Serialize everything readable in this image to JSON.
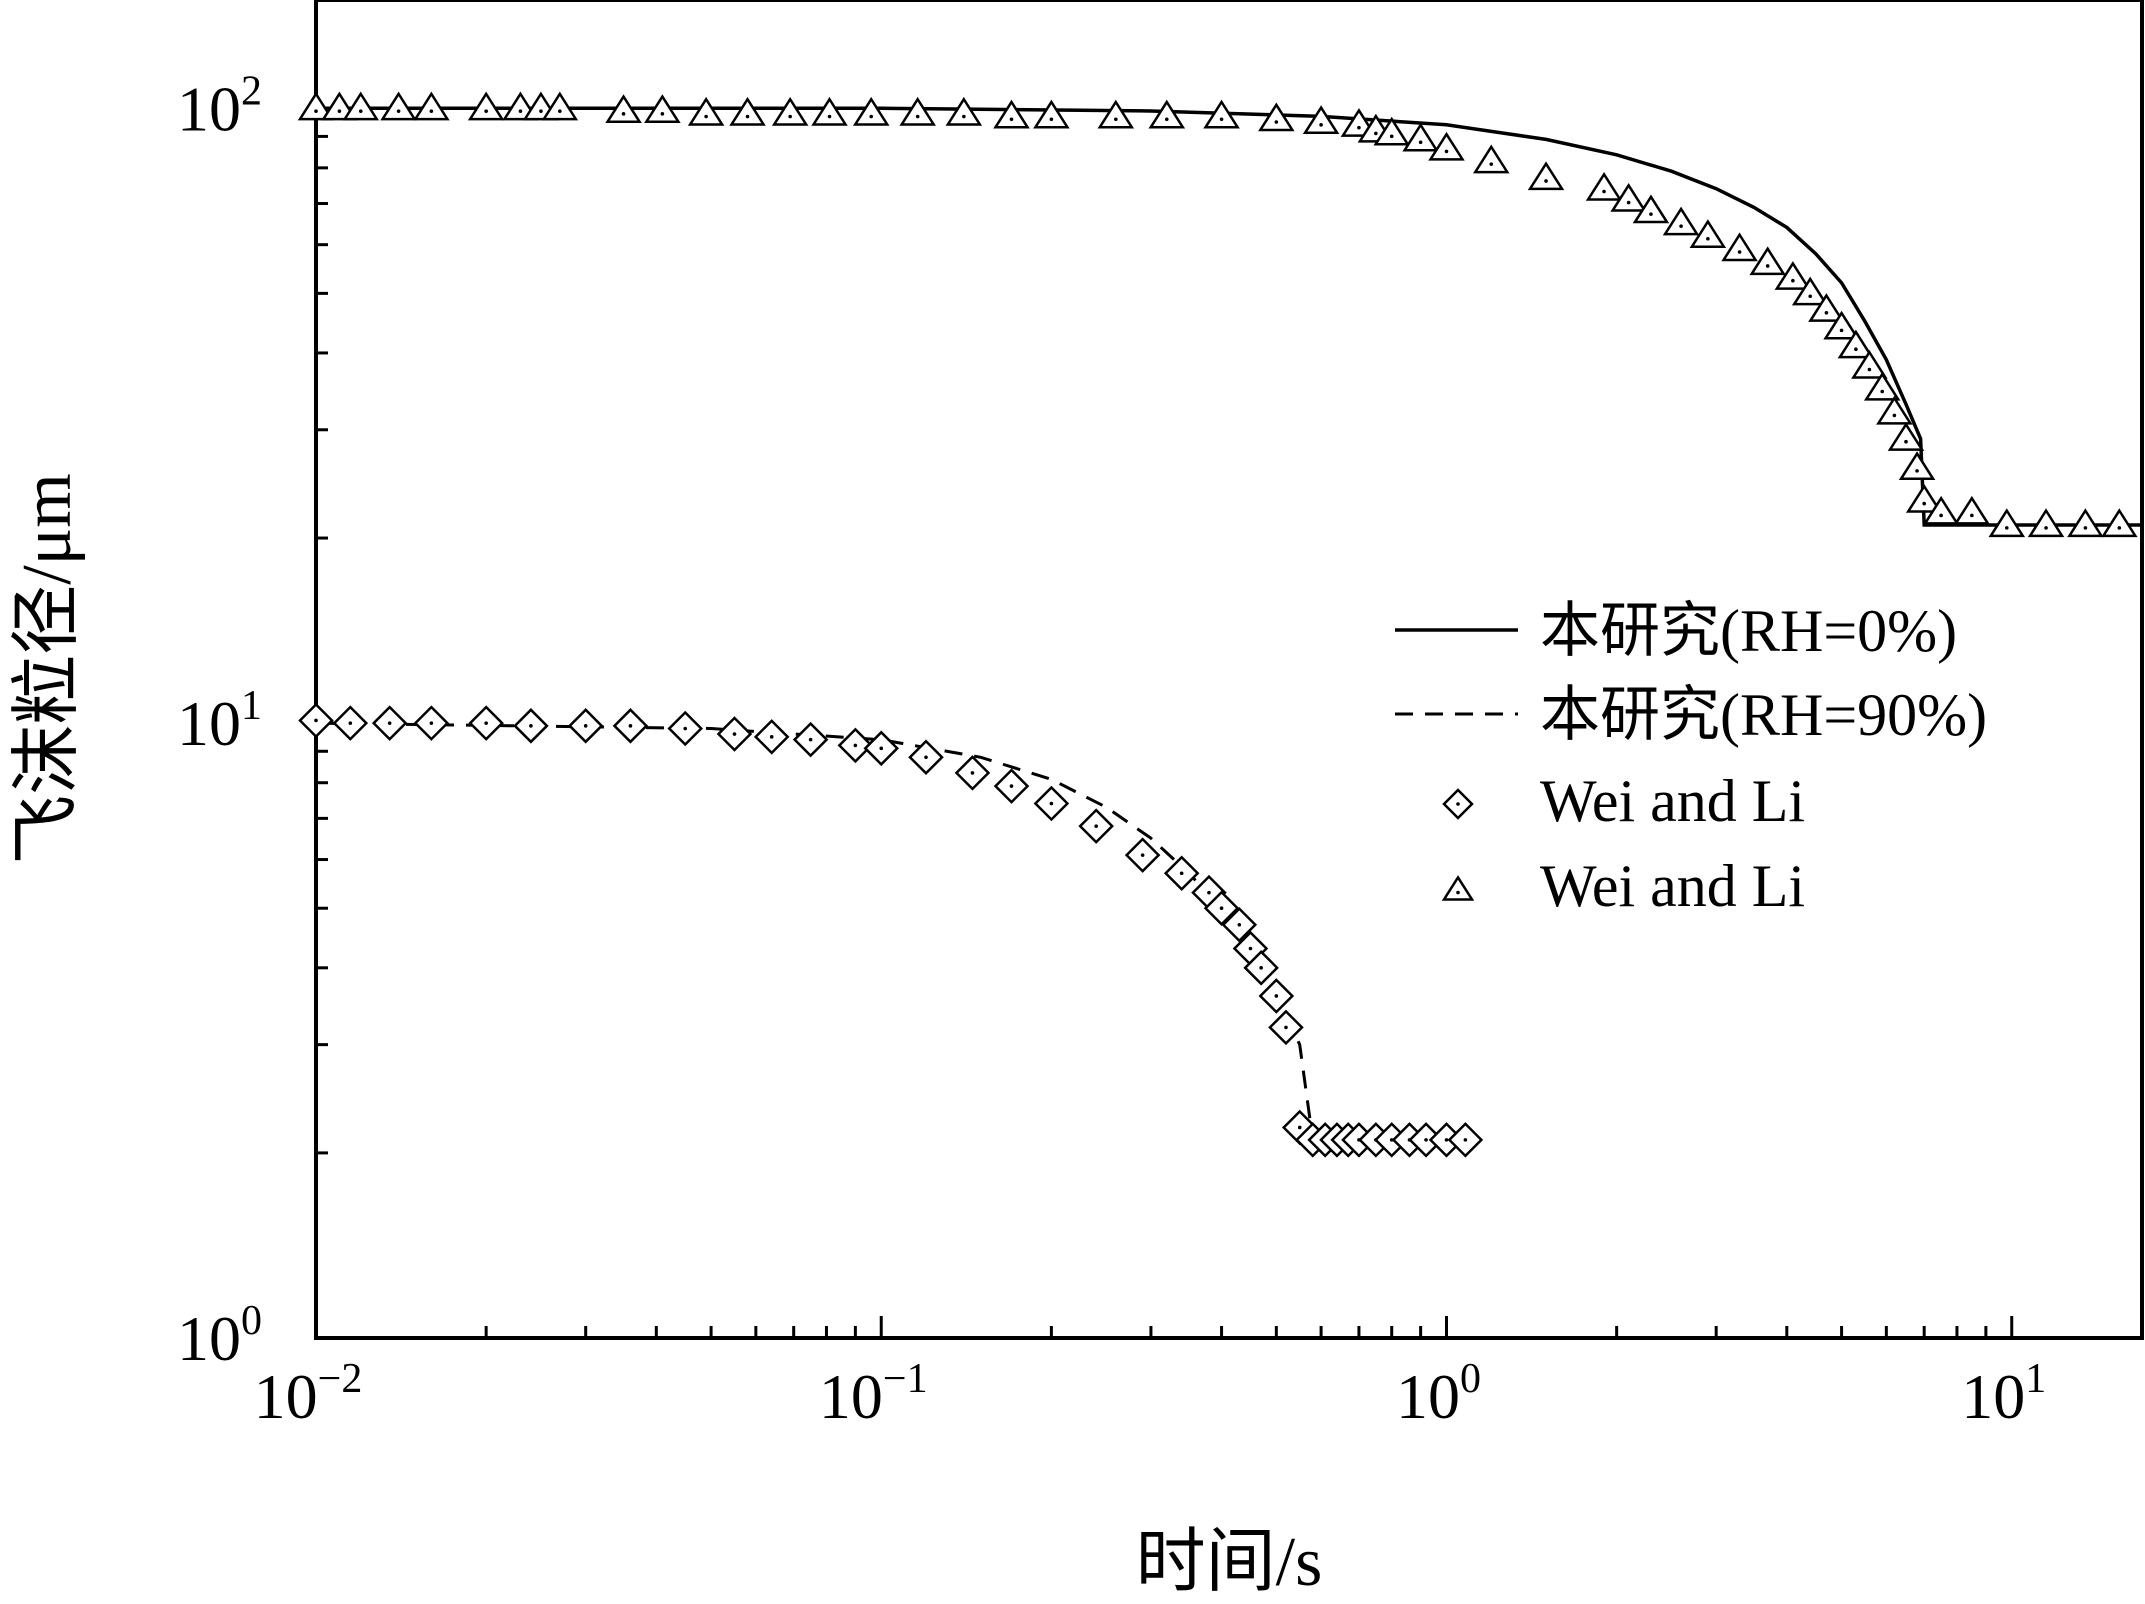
{
  "chart_data": {
    "type": "scatter",
    "xscale": "log",
    "yscale": "log",
    "xlim": [
      0.01,
      17
    ],
    "ylim": [
      1,
      150
    ],
    "xlabel": "时间/s",
    "ylabel": "飞沫粒径/μm",
    "grid": false,
    "legend_position": "right",
    "x_ticks": [
      {
        "value": 0.01,
        "base": "10",
        "exp": "−2"
      },
      {
        "value": 0.1,
        "base": "10",
        "exp": "−1"
      },
      {
        "value": 1,
        "base": "10",
        "exp": "0"
      },
      {
        "value": 10,
        "base": "10",
        "exp": "1"
      }
    ],
    "y_ticks": [
      {
        "value": 1,
        "base": "10",
        "exp": "0"
      },
      {
        "value": 10,
        "base": "10",
        "exp": "1"
      },
      {
        "value": 100,
        "base": "10",
        "exp": "2"
      }
    ],
    "series": [
      {
        "name": "本研究(RH=0%)",
        "style": "solid-line",
        "x": [
          0.01,
          0.1,
          0.3,
          0.6,
          1.0,
          1.5,
          2.0,
          2.5,
          3.0,
          3.5,
          4.0,
          4.5,
          5.0,
          5.5,
          6.0,
          6.5,
          6.9,
          7.0,
          10,
          17
        ],
        "y": [
          100,
          100,
          99,
          97,
          94,
          89,
          84,
          79,
          74,
          69,
          64,
          58,
          52,
          45,
          39,
          33,
          29,
          21,
          21,
          21
        ]
      },
      {
        "name": "本研究(RH=90%)",
        "style": "dashed-line",
        "x": [
          0.01,
          0.05,
          0.1,
          0.15,
          0.2,
          0.25,
          0.3,
          0.35,
          0.4,
          0.45,
          0.5,
          0.55,
          0.58,
          0.6,
          0.8,
          1.1
        ],
        "y": [
          10,
          9.8,
          9.4,
          8.8,
          8.1,
          7.3,
          6.5,
          5.7,
          5.0,
          4.3,
          3.6,
          3.0,
          2.1,
          2.1,
          2.1,
          2.1
        ]
      },
      {
        "name": "Wei and Li",
        "marker": "diamond",
        "x": [
          0.01,
          0.0115,
          0.0135,
          0.016,
          0.02,
          0.024,
          0.03,
          0.036,
          0.045,
          0.055,
          0.064,
          0.075,
          0.09,
          0.1,
          0.12,
          0.145,
          0.17,
          0.2,
          0.24,
          0.29,
          0.34,
          0.38,
          0.4,
          0.43,
          0.45,
          0.47,
          0.5,
          0.52,
          0.55,
          0.58,
          0.61,
          0.64,
          0.67,
          0.7,
          0.75,
          0.8,
          0.86,
          0.92,
          1.0,
          1.08
        ],
        "y": [
          10.1,
          10.0,
          10.0,
          10.0,
          10.0,
          9.9,
          9.9,
          9.9,
          9.8,
          9.6,
          9.5,
          9.4,
          9.2,
          9.1,
          8.8,
          8.3,
          7.9,
          7.4,
          6.8,
          6.1,
          5.7,
          5.3,
          5.0,
          4.7,
          4.3,
          4.0,
          3.6,
          3.2,
          2.2,
          2.1,
          2.1,
          2.1,
          2.1,
          2.1,
          2.1,
          2.1,
          2.1,
          2.1,
          2.1,
          2.1
        ]
      },
      {
        "name": "Wei and Li",
        "marker": "triangle",
        "x": [
          0.01,
          0.011,
          0.012,
          0.014,
          0.016,
          0.02,
          0.023,
          0.025,
          0.027,
          0.035,
          0.041,
          0.049,
          0.058,
          0.069,
          0.081,
          0.096,
          0.116,
          0.14,
          0.17,
          0.2,
          0.26,
          0.32,
          0.4,
          0.5,
          0.6,
          0.7,
          0.75,
          0.8,
          0.9,
          1.0,
          1.2,
          1.5,
          1.9,
          2.1,
          2.3,
          2.6,
          2.9,
          3.3,
          3.7,
          4.1,
          4.4,
          4.7,
          5.0,
          5.3,
          5.6,
          5.9,
          6.2,
          6.5,
          6.8,
          7.0,
          7.5,
          8.5,
          9.8,
          11.5,
          13.5,
          15.5
        ],
        "y": [
          100,
          100,
          100,
          100,
          100,
          100,
          100,
          100,
          100,
          99,
          99,
          98,
          98,
          98,
          98,
          98,
          98,
          98,
          97,
          97,
          97,
          97,
          97,
          96,
          95,
          94,
          92,
          91,
          89,
          86,
          82,
          77,
          74,
          71,
          68,
          65,
          62,
          59,
          56,
          53,
          50,
          47,
          44,
          41,
          38,
          35,
          32,
          29,
          26,
          23,
          22,
          22,
          21,
          21,
          21,
          21
        ]
      }
    ]
  }
}
